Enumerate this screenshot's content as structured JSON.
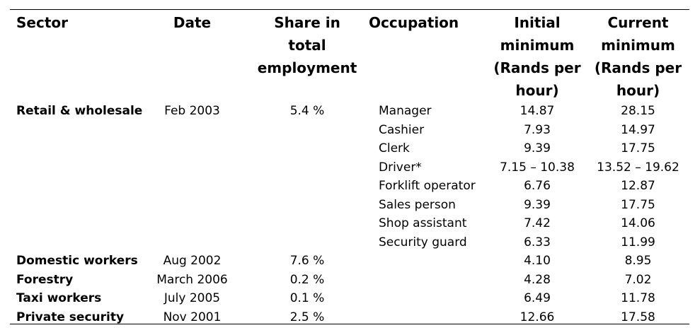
{
  "table": {
    "headers": {
      "sector": [
        "Sector"
      ],
      "date": [
        "Date"
      ],
      "share": [
        "Share in",
        "total",
        "employment"
      ],
      "occupation": [
        "Occupation"
      ],
      "initial": [
        "Initial",
        "minimum",
        "(Rands per",
        "hour)"
      ],
      "current": [
        "Current",
        "minimum",
        "(Rands per",
        "hour)"
      ]
    },
    "rows": [
      {
        "sector": "Retail & wholesale",
        "date": "Feb 2003",
        "share": "5.4 %",
        "occupation": "Manager",
        "initial": "14.87",
        "current": "28.15"
      },
      {
        "sector": "",
        "date": "",
        "share": "",
        "occupation": "Cashier",
        "initial": "7.93",
        "current": "14.97"
      },
      {
        "sector": "",
        "date": "",
        "share": "",
        "occupation": "Clerk",
        "initial": "9.39",
        "current": "17.75"
      },
      {
        "sector": "",
        "date": "",
        "share": "",
        "occupation": "Driver*",
        "initial": "7.15 – 10.38",
        "current": "13.52 – 19.62"
      },
      {
        "sector": "",
        "date": "",
        "share": "",
        "occupation": "Forklift operator",
        "initial": "6.76",
        "current": "12.87"
      },
      {
        "sector": "",
        "date": "",
        "share": "",
        "occupation": "Sales person",
        "initial": "9.39",
        "current": "17.75"
      },
      {
        "sector": "",
        "date": "",
        "share": "",
        "occupation": "Shop assistant",
        "initial": "7.42",
        "current": "14.06"
      },
      {
        "sector": "",
        "date": "",
        "share": "",
        "occupation": "Security guard",
        "initial": "6.33",
        "current": "11.99"
      },
      {
        "sector": "Domestic workers",
        "date": "Aug 2002",
        "share": "7.6 %",
        "occupation": "",
        "initial": "4.10",
        "current": "8.95"
      },
      {
        "sector": "Forestry",
        "date": "March 2006",
        "share": "0.2 %",
        "occupation": "",
        "initial": "4.28",
        "current": "7.02"
      },
      {
        "sector": "Taxi workers",
        "date": "July 2005",
        "share": "0.1 %",
        "occupation": "",
        "initial": "6.49",
        "current": "11.78"
      },
      {
        "sector": "Private security",
        "date": "Nov 2001",
        "share": "2.5 %",
        "occupation": "",
        "initial": "12.66",
        "current": "17.58"
      }
    ]
  }
}
